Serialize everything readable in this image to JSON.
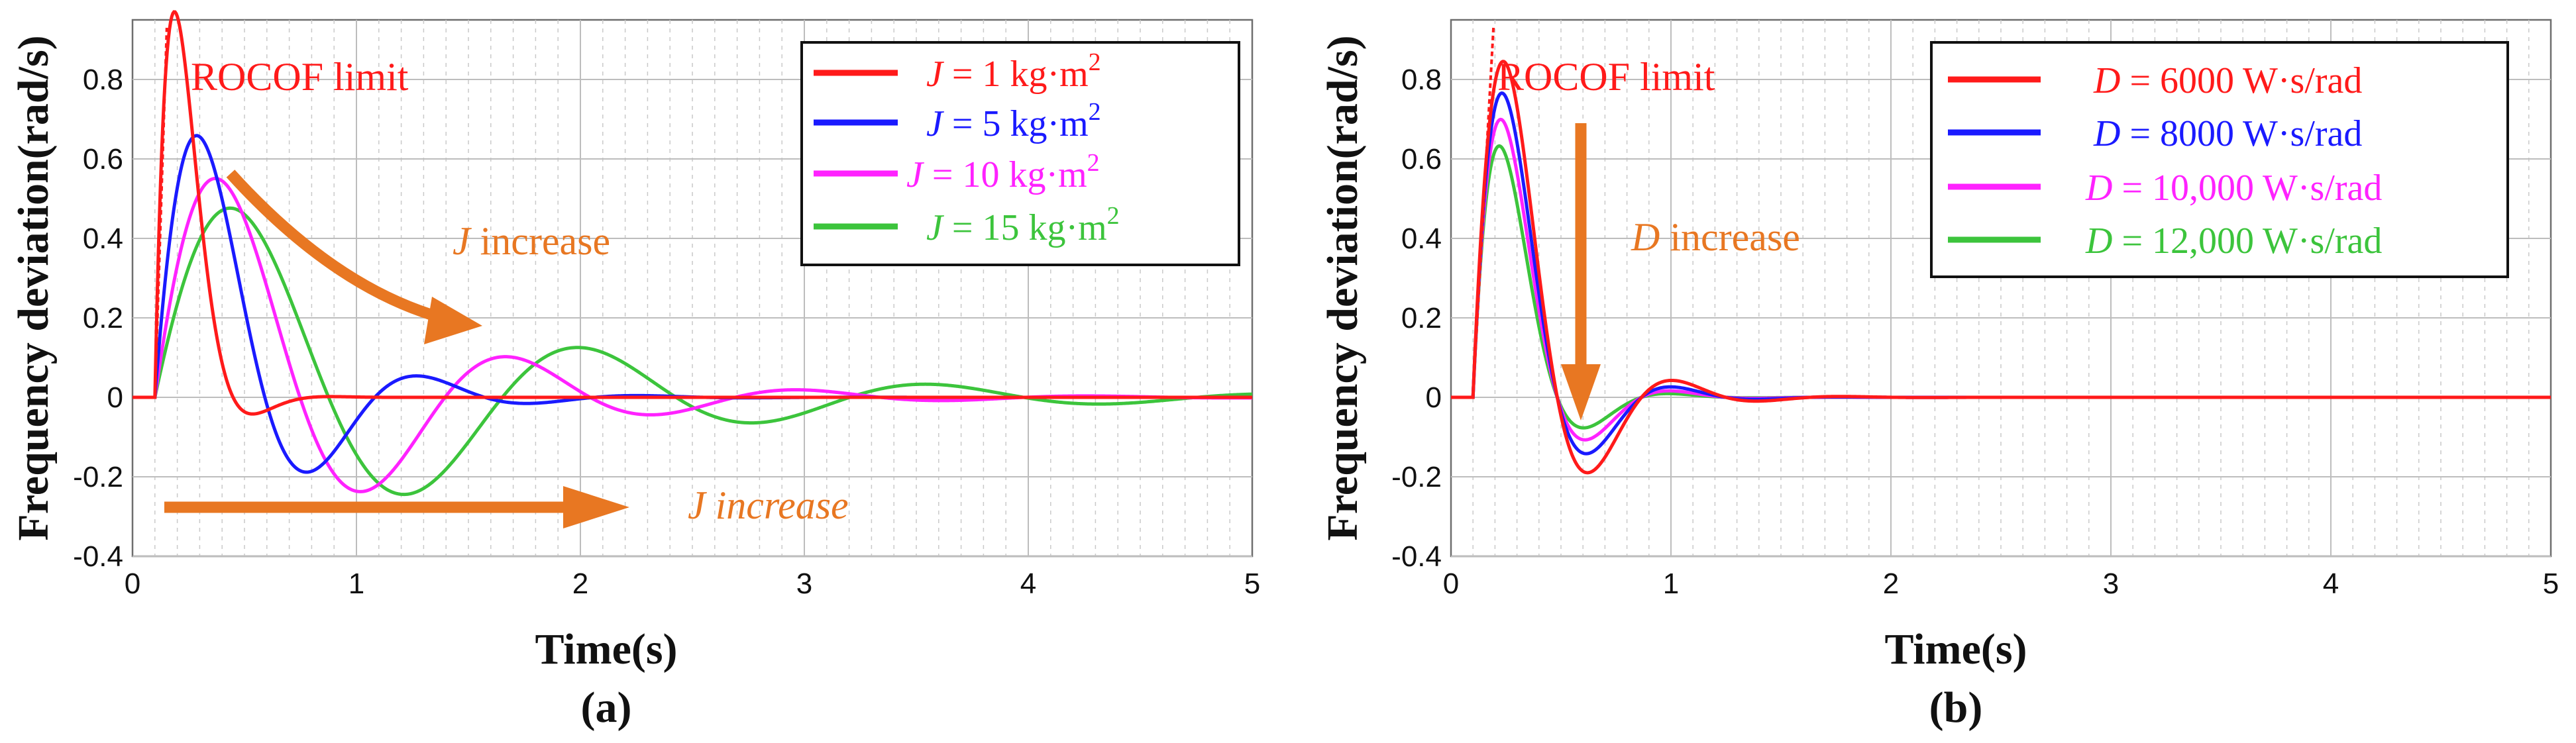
{
  "chart_data": [
    {
      "type": "line",
      "panel_label": "(a)",
      "xlabel": "Time(s)",
      "ylabel": "Frequency deviation(rad/s)",
      "xlim": [
        0,
        5
      ],
      "ylim": [
        -0.4,
        0.95
      ],
      "xticks": [
        0,
        1,
        2,
        3,
        4,
        5
      ],
      "yticks": [
        -0.4,
        -0.2,
        0,
        0.2,
        0.4,
        0.6,
        0.8
      ],
      "grid": true,
      "legend_position": "top-right",
      "series": [
        {
          "name": "J = 1 kg·m²",
          "symbol": "J",
          "value_text": " = 1 kg·m",
          "sup": "2",
          "color": "#ff1a1a",
          "t0": 0.1,
          "amplitude": 3.01,
          "decay": 9.0,
          "omega": 9.0
        },
        {
          "name": "J = 5 kg·m²",
          "symbol": "J",
          "value_text": " = 5 kg·m",
          "sup": "2",
          "color": "#1a1aff",
          "t0": 0.1,
          "amplitude": 1.14,
          "decay": 2.55,
          "omega": 6.4
        },
        {
          "name": "J = 10 kg·m²",
          "symbol": "J",
          "value_text": " = 10 kg·m",
          "sup": "2",
          "color": "#ff22ff",
          "t0": 0.1,
          "amplitude": 0.81,
          "decay": 1.3,
          "omega": 4.85
        },
        {
          "name": "J = 15 kg·m²",
          "symbol": "J",
          "value_text": " = 15 kg·m",
          "sup": "2",
          "color": "#3cc43c",
          "t0": 0.1,
          "amplitude": 0.65,
          "decay": 0.86,
          "omega": 4.05
        }
      ],
      "rocof_line": {
        "label": "ROCOF limit",
        "color": "#ff1a1a",
        "t_start": 0.1,
        "slope": 17.5
      },
      "annotations": [
        {
          "symbol": "J",
          "text": " increase",
          "color": "#e87722",
          "italic_all": false,
          "x": 1.45,
          "y": 0.41
        },
        {
          "symbol": "J",
          "text": " increase",
          "color": "#e87722",
          "italic_all": true,
          "x": 2.55,
          "y": -0.29
        }
      ]
    },
    {
      "type": "line",
      "panel_label": "(b)",
      "xlabel": "Time(s)",
      "ylabel": "Frequency deviation(rad/s)",
      "xlim": [
        0,
        5
      ],
      "ylim": [
        -0.4,
        0.95
      ],
      "xticks": [
        0,
        1,
        2,
        3,
        4,
        5
      ],
      "yticks": [
        -0.4,
        -0.2,
        0,
        0.2,
        0.4,
        0.6,
        0.8
      ],
      "grid": true,
      "legend_position": "top-right",
      "series": [
        {
          "name": "D = 6000 W·s/rad",
          "symbol": "D",
          "value_text": " = 6000 W·s/rad",
          "sup": "",
          "color": "#ff1a1a",
          "t0": 0.1,
          "amplitude": 1.6,
          "decay": 3.9,
          "omega": 8.2
        },
        {
          "name": "D = 8000 W·s/rad",
          "symbol": "D",
          "value_text": " = 8000 W·s/rad",
          "sup": "",
          "color": "#1a1aff",
          "t0": 0.1,
          "amplitude": 1.55,
          "decay": 4.4,
          "omega": 8.2
        },
        {
          "name": "D = 10,000 W·s/rad",
          "symbol": "D",
          "value_text": " = 10,000 W·s/rad",
          "sup": "",
          "color": "#ff22ff",
          "t0": 0.1,
          "amplitude": 1.51,
          "decay": 4.9,
          "omega": 8.2
        },
        {
          "name": "D = 12,000 W·s/rad",
          "symbol": "D",
          "value_text": " = 12,000 W·s/rad",
          "sup": "",
          "color": "#3cc43c",
          "t0": 0.1,
          "amplitude": 1.47,
          "decay": 5.5,
          "omega": 8.2
        }
      ],
      "rocof_line": {
        "label": "ROCOF limit",
        "color": "#ff1a1a",
        "t_start": 0.1,
        "slope": 10.0
      },
      "annotations": [
        {
          "symbol": "D",
          "text": " increase",
          "color": "#e87722",
          "italic_all": false,
          "x": 0.82,
          "y": 0.42
        }
      ]
    }
  ]
}
